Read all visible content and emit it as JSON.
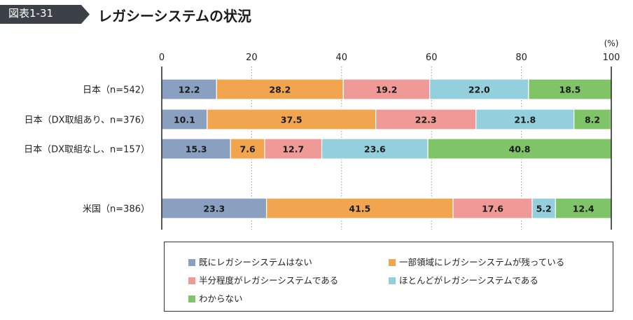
{
  "header": {
    "figure_number": "図表1-31",
    "title": "レガシーシステムの状況"
  },
  "colors": {
    "tag_bg": "#3c4048",
    "series": [
      "#8aa0c0",
      "#f0a54e",
      "#f09a97",
      "#93cfdc",
      "#7fc466"
    ]
  },
  "chart_data": {
    "type": "bar",
    "orientation": "horizontal",
    "stacked": true,
    "unit": "(%)",
    "xlim": [
      0,
      100
    ],
    "xticks": [
      "0",
      "20",
      "40",
      "60",
      "80",
      "100"
    ],
    "categories": [
      "日本（n=542）",
      "日本（DX取組あり、n=376）",
      "日本（DX取組なし、n=157）",
      "米国（n=386）"
    ],
    "series": [
      {
        "name": "既にレガシーシステムはない",
        "values": [
          12.2,
          10.1,
          15.3,
          23.3
        ]
      },
      {
        "name": "一部領域にレガシーシステムが残っている",
        "values": [
          28.2,
          37.5,
          7.6,
          41.5
        ]
      },
      {
        "name": "半分程度がレガシーシステムである",
        "values": [
          19.2,
          22.3,
          12.7,
          17.6
        ]
      },
      {
        "name": "ほとんどがレガシーシステムである",
        "values": [
          22.0,
          21.8,
          23.6,
          5.2
        ]
      },
      {
        "name": "わからない",
        "values": [
          18.5,
          8.2,
          40.8,
          12.4
        ]
      }
    ],
    "grid": "dotted vertical",
    "legend_position": "bottom"
  }
}
